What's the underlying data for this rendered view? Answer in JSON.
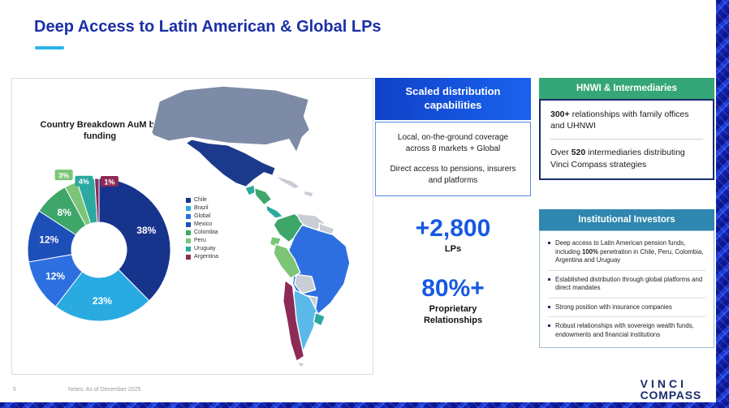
{
  "page": {
    "title": "Deep Access to Latin American & Global LPs",
    "page_number": "5",
    "notes": "Notes: As of December 2025",
    "logo_line1": "VINCI",
    "logo_line2": "COMPASS"
  },
  "chart_data": {
    "type": "pie",
    "donut": true,
    "title": "Country Breakdown AuM by funding",
    "categories": [
      "Chile",
      "Brazil",
      "Global",
      "Mexico",
      "Colombia",
      "Peru",
      "Uruguay",
      "Argentina"
    ],
    "values": [
      38,
      23,
      12,
      12,
      8,
      3,
      4,
      1
    ],
    "labels": [
      "38%",
      "23%",
      "12%",
      "12%",
      "8%",
      "3%",
      "4%",
      "1%"
    ],
    "colors": [
      "#16348C",
      "#29ABE2",
      "#2D6FE0",
      "#1D4FB8",
      "#3FA66A",
      "#7CC576",
      "#2BA9A0",
      "#8E2A56"
    ],
    "legend_position": "right"
  },
  "map": {
    "colors": {
      "usa": "#7D8BA6",
      "mexico": "#1B3A8C",
      "guatemala": "#2BA9A0",
      "central_america": "#3FA66A",
      "panama": "#2BA9A0",
      "cuba": "#C8CDD6",
      "hispaniola": "#C8CDD6",
      "colombia": "#3FA66A",
      "venezuela": "#C8CDD6",
      "guyanas": "#C8CDD6",
      "ecuador": "#7CC576",
      "peru": "#7CC576",
      "brazil": "#2D6FE0",
      "bolivia": "#C8CDD6",
      "paraguay": "#C8CDD6",
      "chile": "#8E2A56",
      "argentina": "#5BB9EA",
      "uruguay": "#2BA9A0",
      "tierra_del_fuego": "#C8CDD6"
    }
  },
  "distribution": {
    "header": "Scaled distribution capabilities",
    "line1": "Local, on-the-ground coverage across 8 markets + Global",
    "line2": "Direct access to pensions, insurers and platforms",
    "stat1_value": "+2,800",
    "stat1_label": "LPs",
    "stat2_value": "80%+",
    "stat2_label": "Proprietary Relationships"
  },
  "hnwi": {
    "header": "HNWI & Intermediaries",
    "item1_bold": "300+",
    "item1_rest": " relationships with family offices and UHNWI",
    "item2_pre": "Over ",
    "item2_bold": "520",
    "item2_rest": " intermediaries distributing Vinci Compass strategies"
  },
  "institutional": {
    "header": "Institutional Investors",
    "b1_pre": "Deep access to Latin American pension funds, including ",
    "b1_bold": "100%",
    "b1_post": " penetration in Chile, Peru, Colombia, Argentina and Uruguay",
    "b2": "Established distribution through global platforms and direct mandates",
    "b3": "Strong position with insurance companies",
    "b4": "Robust relationships with sovereign wealth funds, endowments and financial institutions"
  }
}
